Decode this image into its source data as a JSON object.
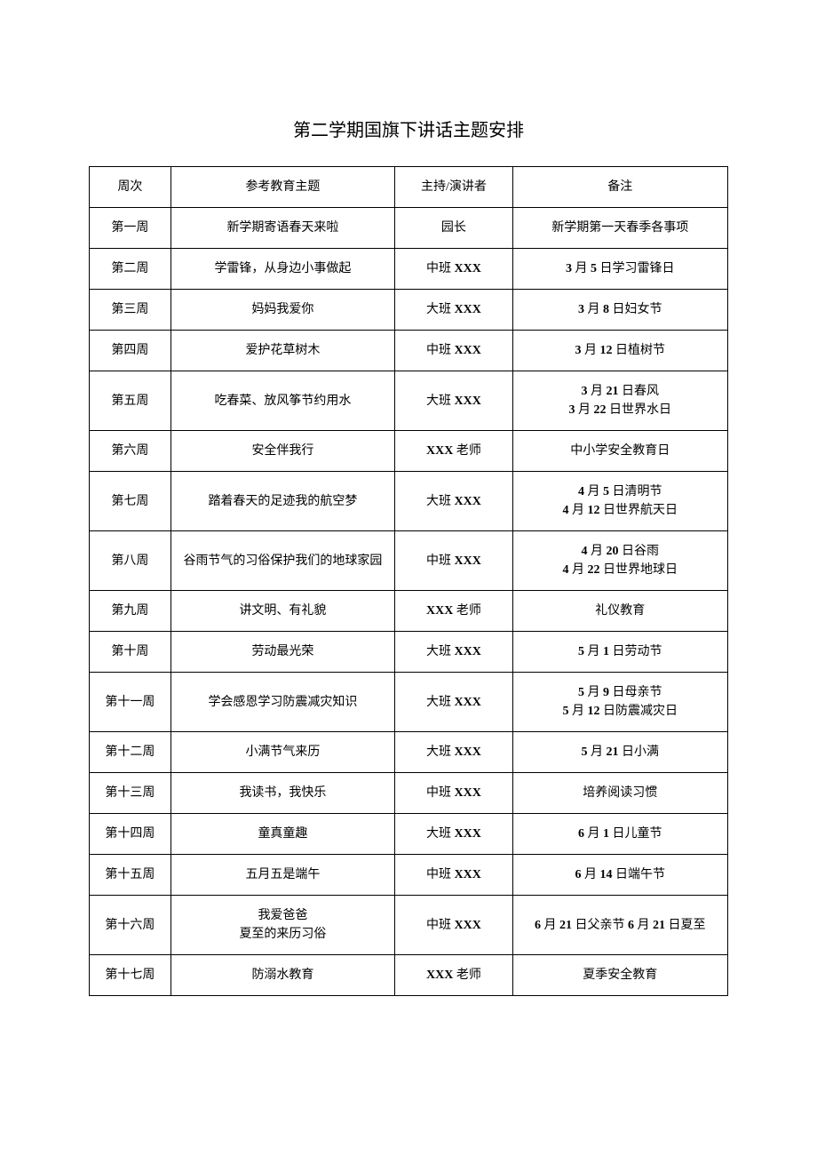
{
  "title": "第二学期国旗下讲话主题安排",
  "headers": {
    "week": "周次",
    "topic": "参考教育主题",
    "host": "主持/演讲者",
    "note": "备注"
  },
  "rows": [
    {
      "week": "第一周",
      "topic": "新学期寄语春天来啦",
      "host_pre": "园长",
      "host_bold": "",
      "host_post": "",
      "note_pre": "新学期第一天春季各事项",
      "note_bold": "",
      "note_post": ""
    },
    {
      "week": "第二周",
      "topic": "学雷锋，从身边小事做起",
      "host_pre": "中班 ",
      "host_bold": "XXX",
      "host_post": "",
      "note_pre": "",
      "note_bold": "3",
      "note_mid": " 月 ",
      "note_bold2": "5",
      "note_post": " 日学习雷锋日"
    },
    {
      "week": "第三周",
      "topic": "妈妈我爱你",
      "host_pre": "大班 ",
      "host_bold": "XXX",
      "host_post": "",
      "note_pre": "",
      "note_bold": "3",
      "note_mid": " 月 ",
      "note_bold2": "8",
      "note_post": " 日妇女节"
    },
    {
      "week": "第四周",
      "topic": "爱护花草树木",
      "host_pre": "中班 ",
      "host_bold": "XXX",
      "host_post": "",
      "note_pre": "",
      "note_bold": "3",
      "note_mid": " 月 ",
      "note_bold2": "12",
      "note_post": " 日植树节"
    },
    {
      "week": "第五周",
      "topic": "吃春菜、放风筝节约用水",
      "host_pre": "大班 ",
      "host_bold": "XXX",
      "host_post": "",
      "note_line1_bold1": "3",
      "note_line1_mid": " 月 ",
      "note_line1_bold2": "21",
      "note_line1_post": " 日春风",
      "note_line2_bold1": "3",
      "note_line2_mid": " 月 ",
      "note_line2_bold2": "22",
      "note_line2_post": " 日世界水日"
    },
    {
      "week": "第六周",
      "topic": "安全伴我行",
      "host_pre": "",
      "host_bold": "XXX",
      "host_post": " 老师",
      "note_pre": "中小学安全教育日",
      "note_bold": "",
      "note_post": ""
    },
    {
      "week": "第七周",
      "topic": "踏着春天的足迹我的航空梦",
      "host_pre": "大班 ",
      "host_bold": "XXX",
      "host_post": "",
      "note_line1_bold1": "4",
      "note_line1_mid": " 月 ",
      "note_line1_bold2": "5",
      "note_line1_post": " 日清明节",
      "note_line2_bold1": "4",
      "note_line2_mid": " 月 ",
      "note_line2_bold2": "12",
      "note_line2_post": " 日世界航天日"
    },
    {
      "week": "第八周",
      "topic": "谷雨节气的习俗保护我们的地球家园",
      "host_pre": "中班 ",
      "host_bold": "XXX",
      "host_post": "",
      "note_line1_bold1": "4",
      "note_line1_mid": " 月 ",
      "note_line1_bold2": "20",
      "note_line1_post": " 日谷雨",
      "note_line2_bold1": "4",
      "note_line2_mid": " 月 ",
      "note_line2_bold2": "22",
      "note_line2_post": " 日世界地球日"
    },
    {
      "week": "第九周",
      "topic": "讲文明、有礼貌",
      "host_pre": "",
      "host_bold": "XXX",
      "host_post": " 老师",
      "note_pre": "礼仪教育",
      "note_bold": "",
      "note_post": ""
    },
    {
      "week": "第十周",
      "topic": "劳动最光荣",
      "host_pre": "大班 ",
      "host_bold": "XXX",
      "host_post": "",
      "note_pre": "",
      "note_bold": "5",
      "note_mid": " 月 ",
      "note_bold2": "1",
      "note_post": " 日劳动节"
    },
    {
      "week": "第十一周",
      "topic": "学会感恩学习防震减灾知识",
      "host_pre": "大班 ",
      "host_bold": "XXX",
      "host_post": "",
      "note_line1_bold1": "5",
      "note_line1_mid": " 月 ",
      "note_line1_bold2": "9",
      "note_line1_post": " 日母亲节",
      "note_line2_bold1": "5",
      "note_line2_mid": " 月 ",
      "note_line2_bold2": "12",
      "note_line2_post": " 日防震减灾日"
    },
    {
      "week": "第十二周",
      "topic": "小满节气来历",
      "host_pre": "大班 ",
      "host_bold": "XXX",
      "host_post": "",
      "note_pre": "",
      "note_bold": "5",
      "note_mid": " 月 ",
      "note_bold2": "21",
      "note_post": " 日小满"
    },
    {
      "week": "第十三周",
      "topic": "我读书，我快乐",
      "host_pre": "中班 ",
      "host_bold": "XXX",
      "host_post": "",
      "note_pre": "培养阅读习惯",
      "note_bold": "",
      "note_post": ""
    },
    {
      "week": "第十四周",
      "topic": "童真童趣",
      "host_pre": "大班 ",
      "host_bold": "XXX",
      "host_post": "",
      "note_pre": "",
      "note_bold": "6",
      "note_mid": " 月 ",
      "note_bold2": "1",
      "note_post": " 日儿童节"
    },
    {
      "week": "第十五周",
      "topic": "五月五是端午",
      "host_pre": "中班 ",
      "host_bold": "XXX",
      "host_post": "",
      "note_pre": "",
      "note_bold": "6",
      "note_mid": " 月 ",
      "note_bold2": "14",
      "note_post": " 日端午节"
    },
    {
      "week": "第十六周",
      "topic": "我爱爸爸\n夏至的来历习俗",
      "host_pre": "中班 ",
      "host_bold": "XXX",
      "host_post": "",
      "note16_bold1": "6",
      "note16_t1": " 月 ",
      "note16_bold2": "21",
      "note16_t2": " 日父亲节 ",
      "note16_bold3": "6",
      "note16_t3": " 月 ",
      "note16_bold4": "21",
      "note16_t4": " 日夏至"
    },
    {
      "week": "第十七周",
      "topic": "防溺水教育",
      "host_pre": "",
      "host_bold": "XXX",
      "host_post": " 老师",
      "note_pre": "夏季安全教育",
      "note_bold": "",
      "note_post": ""
    }
  ]
}
